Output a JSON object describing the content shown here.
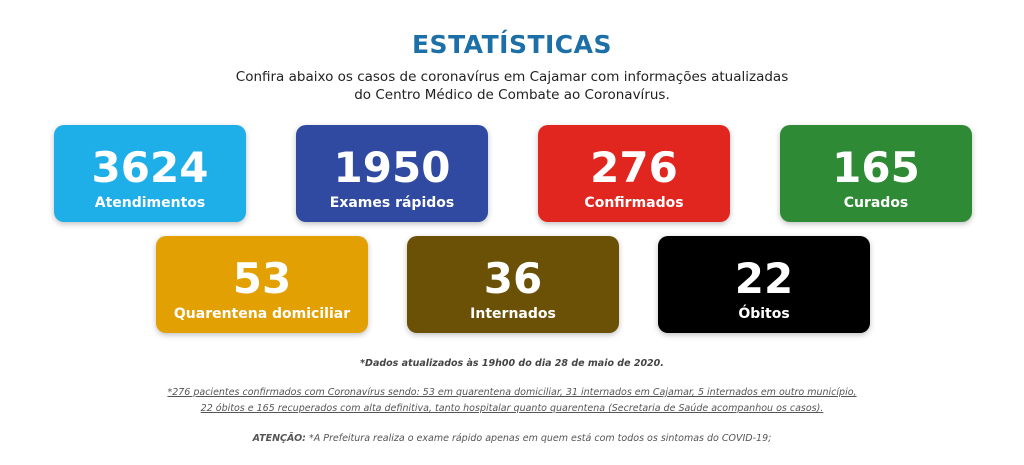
{
  "header": {
    "title": "ESTATÍSTICAS",
    "subtitle_line1": "Confira abaixo os casos de coronavírus em Cajamar com informações atualizadas",
    "subtitle_line2": "do Centro Médico de Combate ao Coronavírus."
  },
  "cards": [
    {
      "value": "3624",
      "label": "Atendimentos",
      "color": "#1eaee8"
    },
    {
      "value": "1950",
      "label": "Exames rápidos",
      "color": "#2f4aa0"
    },
    {
      "value": "276",
      "label": "Confirmados",
      "color": "#e1261f"
    },
    {
      "value": "165",
      "label": "Curados",
      "color": "#2e8a35"
    },
    {
      "value": "53",
      "label": "Quarentena domiciliar",
      "color": "#e3a003"
    },
    {
      "value": "36",
      "label": "Internados",
      "color": "#6b5106"
    },
    {
      "value": "22",
      "label": "Óbitos",
      "color": "#000000"
    }
  ],
  "notes": {
    "updated": "*Dados atualizados às 19h00 do dia 28 de maio de 2020.",
    "detail_line1": "*276 pacientes confirmados com Coronavírus sendo: 53 em quarentena domiciliar, 31 internados em Cajamar, 5 internados em outro município,",
    "detail_line2": "22 óbitos e 165 recuperados com alta definitiva, tanto hospitalar quanto quarentena (Secretaria de Saúde acompanhou os casos).",
    "attention_label": "ATENÇÃO:",
    "attention_text": " *A Prefeitura realiza o exame rápido apenas em quem está com todos os sintomas do COVID-19;"
  }
}
